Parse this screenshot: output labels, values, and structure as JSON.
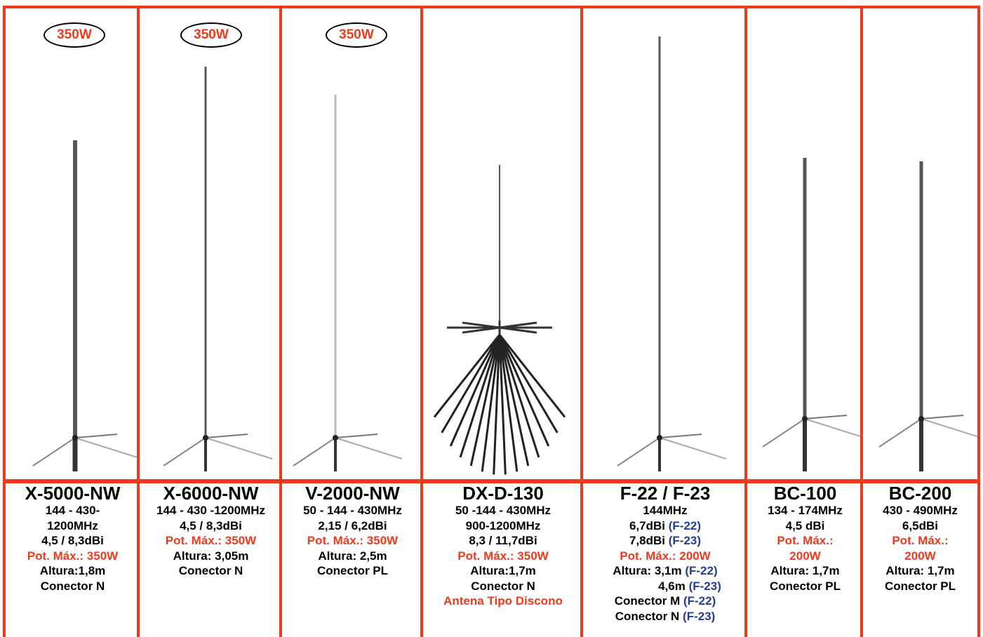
{
  "columns": [
    {
      "badge": "350W",
      "name": "X-5000-NW",
      "lines": [
        [
          {
            "text": "144 - 430-"
          }
        ],
        [
          {
            "text": "1200MHz"
          }
        ],
        [
          {
            "text": "4,5 / 8,3dBi"
          }
        ],
        [
          {
            "text": "Pot. Máx.: 350W",
            "color": "#f03a1c"
          }
        ],
        [
          {
            "text": "Altura:1,8m"
          }
        ],
        [
          {
            "text": "Conector N"
          }
        ]
      ]
    },
    {
      "badge": "350W",
      "name": "X-6000-NW",
      "lines": [
        [
          {
            "text": "144 - 430 -1200MHz"
          }
        ],
        [
          {
            "text": "4,5 / 8,3dBi"
          }
        ],
        [
          {
            "text": "Pot. Máx.: 350W",
            "color": "#f03a1c"
          }
        ],
        [
          {
            "text": "Altura: 3,05m"
          }
        ],
        [
          {
            "text": "Conector N"
          }
        ]
      ]
    },
    {
      "badge": "350W",
      "name": "V-2000-NW",
      "lines": [
        [
          {
            "text": "50 - 144 - 430MHz"
          }
        ],
        [
          {
            "text": "2,15 / 6,2dBi"
          }
        ],
        [
          {
            "text": "Pot. Máx.: 350W",
            "color": "#f03a1c"
          }
        ],
        [
          {
            "text": "Altura: 2,5m"
          }
        ],
        [
          {
            "text": "Conector PL"
          }
        ]
      ]
    },
    {
      "name": "DX-D-130",
      "lines": [
        [
          {
            "text": "50 -144 - 430MHz"
          }
        ],
        [
          {
            "text": "900-1200MHz"
          }
        ],
        [
          {
            "text": "8,3 / 11,7dBi"
          }
        ],
        [
          {
            "text": "Pot. Máx.: 350W",
            "color": "#f03a1c"
          }
        ],
        [
          {
            "text": "Altura:1,7m"
          }
        ],
        [
          {
            "text": "Conector N"
          }
        ],
        [
          {
            "text": "Antena Tipo Discono",
            "color": "#f03a1c"
          }
        ]
      ]
    },
    {
      "name": "F-22 / F-23",
      "lines": [
        [
          {
            "text": "144MHz"
          }
        ],
        [
          {
            "text": "6,7dBi "
          },
          {
            "text": "(F-22)",
            "color": "#1f3f9a"
          }
        ],
        [
          {
            "text": "7,8dBi "
          },
          {
            "text": "(F-23)",
            "color": "#1f3f9a"
          }
        ],
        [
          {
            "text": "Pot. Máx.: 200W",
            "color": "#f03a1c"
          }
        ],
        [
          {
            "text": "Altura: 3,1m "
          },
          {
            "text": "(F-22)",
            "color": "#1f3f9a"
          }
        ],
        [
          {
            "text": "4,6m "
          },
          {
            "text": "(F-23)",
            "color": "#1f3f9a"
          }
        ],
        [
          {
            "text": "Conector M "
          },
          {
            "text": "(F-22)",
            "color": "#1f3f9a"
          }
        ],
        [
          {
            "text": "Conector N "
          },
          {
            "text": "(F-23)",
            "color": "#1f3f9a"
          }
        ]
      ]
    },
    {
      "name": "BC-100",
      "lines": [
        [
          {
            "text": "134 - 174MHz"
          }
        ],
        [
          {
            "text": "4,5 dBi"
          }
        ],
        [
          {
            "text": "Pot. Máx.:",
            "color": "#f03a1c"
          }
        ],
        [
          {
            "text": "200W",
            "color": "#f03a1c"
          }
        ],
        [
          {
            "text": "Altura: 1,7m"
          }
        ],
        [
          {
            "text": "Conector PL"
          }
        ]
      ]
    },
    {
      "name": "BC-200",
      "lines": [
        [
          {
            "text": "430 - 490MHz"
          }
        ],
        [
          {
            "text": "6,5dBi"
          }
        ],
        [
          {
            "text": "Pot. Máx.:",
            "color": "#f03a1c"
          }
        ],
        [
          {
            "text": "200W",
            "color": "#f03a1c"
          }
        ],
        [
          {
            "text": "Altura: 1,7m"
          }
        ],
        [
          {
            "text": "Conector PL"
          }
        ]
      ]
    }
  ]
}
